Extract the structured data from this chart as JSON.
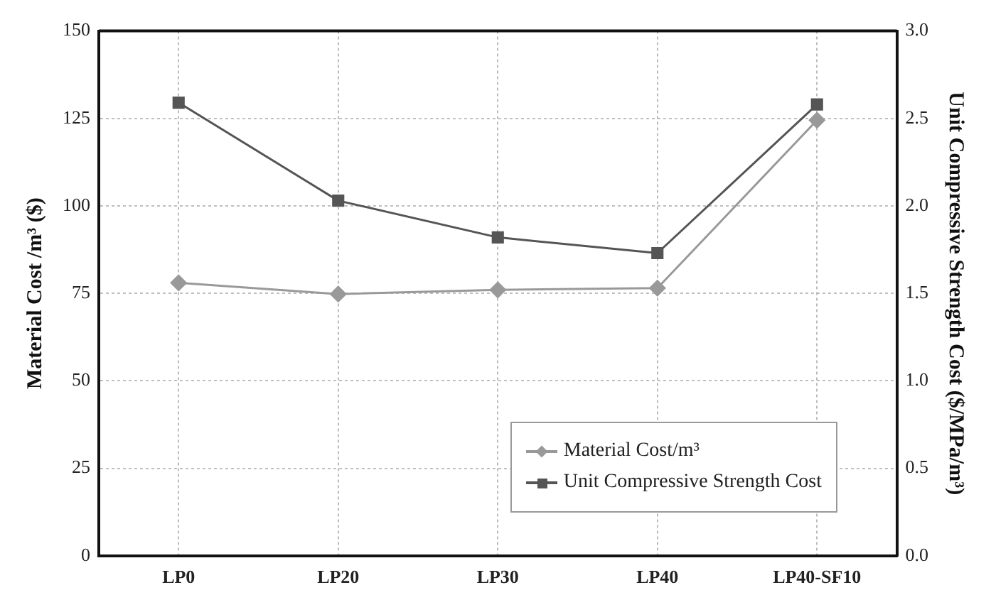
{
  "chart_data": {
    "type": "line",
    "xlabel": null,
    "ylabel": "Material Cost /m³ ($)",
    "y2label": "Unit Compressive Strength Cost ($/MPa/m³)",
    "categories": [
      "LP0",
      "LP20",
      "LP30",
      "LP40",
      "LP40-SF10"
    ],
    "series": [
      {
        "name": "Material Cost/m³",
        "color": "#999999",
        "marker": "diamond",
        "values": [
          78,
          74.8,
          76,
          76.5,
          124.5
        ]
      },
      {
        "name": "Unit Compressive Strength Cost",
        "color": "#555555",
        "marker": "square",
        "axis": "y2",
        "values": [
          2.59,
          2.03,
          1.82,
          1.73,
          2.58
        ]
      }
    ],
    "ylim": [
      0,
      150
    ],
    "yticks": [
      0,
      25,
      50,
      75,
      100,
      125,
      150
    ],
    "y2lim": [
      0,
      3
    ],
    "y2ticks": [
      {
        "value": 0,
        "label": "0.0"
      },
      {
        "value": 0.5,
        "label": "0.5"
      },
      {
        "value": 1,
        "label": "1.0"
      },
      {
        "value": 1.5,
        "label": "1.5"
      },
      {
        "value": 2,
        "label": "2.0"
      },
      {
        "value": 2.5,
        "label": "2.5"
      },
      {
        "value": 3,
        "label": "3.0"
      }
    ],
    "grid": true,
    "legend": "bottom right",
    "line_style": "solid"
  }
}
